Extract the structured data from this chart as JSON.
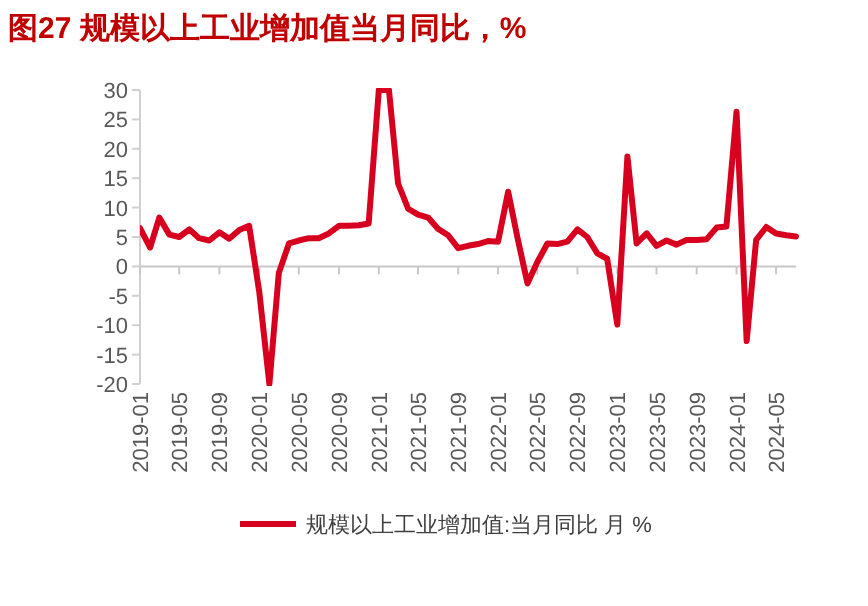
{
  "chart_data": {
    "type": "line",
    "title": "图27  规模以上工业增加值当月同比，%",
    "x": [
      "2019-01",
      "2019-02",
      "2019-03",
      "2019-04",
      "2019-05",
      "2019-06",
      "2019-07",
      "2019-08",
      "2019-09",
      "2019-10",
      "2019-11",
      "2019-12",
      "2020-01",
      "2020-02",
      "2020-03",
      "2020-04",
      "2020-05",
      "2020-06",
      "2020-07",
      "2020-08",
      "2020-09",
      "2020-10",
      "2020-11",
      "2020-12",
      "2021-01",
      "2021-02",
      "2021-03",
      "2021-04",
      "2021-05",
      "2021-06",
      "2021-07",
      "2021-08",
      "2021-09",
      "2021-10",
      "2021-11",
      "2021-12",
      "2022-01",
      "2022-02",
      "2022-03",
      "2022-04",
      "2022-05",
      "2022-06",
      "2022-07",
      "2022-08",
      "2022-09",
      "2022-10",
      "2022-11",
      "2022-12",
      "2023-01",
      "2023-02",
      "2023-03",
      "2023-04",
      "2023-05",
      "2023-06",
      "2023-07",
      "2023-08",
      "2023-09",
      "2023-10",
      "2023-11",
      "2023-12",
      "2024-01",
      "2024-02",
      "2024-03",
      "2024-04",
      "2024-05",
      "2024-06",
      "2024-07"
    ],
    "series": [
      {
        "name": "规模以上工业增加值:当月同比 月 %",
        "color": "#d7001e",
        "values": [
          6.5,
          3.2,
          8.3,
          5.4,
          5.0,
          6.3,
          4.8,
          4.4,
          5.8,
          4.7,
          6.2,
          6.9,
          -4.3,
          -20,
          -1.1,
          3.9,
          4.4,
          4.8,
          4.8,
          5.6,
          6.9,
          6.9,
          7.0,
          7.3,
          30,
          30,
          14.1,
          9.8,
          8.8,
          8.3,
          6.4,
          5.3,
          3.1,
          3.5,
          3.8,
          4.3,
          4.2,
          12.7,
          5.0,
          -2.9,
          0.7,
          3.9,
          3.8,
          4.2,
          6.3,
          5.0,
          2.2,
          1.3,
          -9.9,
          18.7,
          3.9,
          5.6,
          3.5,
          4.4,
          3.7,
          4.5,
          4.5,
          4.6,
          6.6,
          6.8,
          26.3,
          -12.7,
          4.5,
          6.7,
          5.6,
          5.3,
          5.1
        ]
      }
    ],
    "xlim": [
      "2019-01",
      "2024-07"
    ],
    "xticks": [
      "2019-01",
      "2019-05",
      "2019-09",
      "2020-01",
      "2020-05",
      "2020-09",
      "2021-01",
      "2021-05",
      "2021-09",
      "2022-01",
      "2022-05",
      "2022-09",
      "2023-01",
      "2023-05",
      "2023-09",
      "2024-01",
      "2024-05"
    ],
    "ylim": [
      -20,
      30
    ],
    "yticks": [
      -20,
      -15,
      -10,
      -5,
      0,
      5,
      10,
      15,
      20,
      25,
      30
    ],
    "legend": "bottom",
    "line_style": "solid",
    "marker": "none"
  }
}
